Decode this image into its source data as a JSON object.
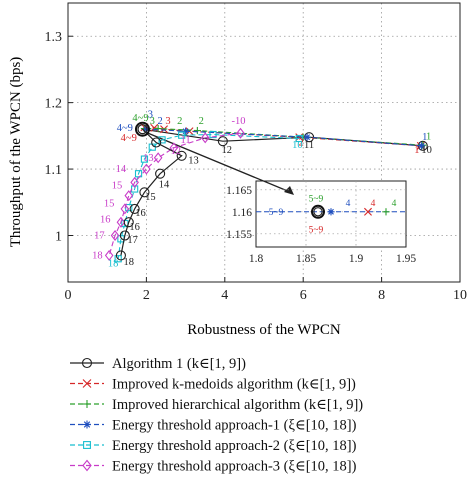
{
  "chart_data": {
    "type": "line",
    "xlabel": "Robustness of the WPCN",
    "ylabel": "Throughput of the WPCN (bps)",
    "xlim": [
      0,
      10
    ],
    "ylim": [
      0.93,
      1.35
    ],
    "xticks": [
      "0",
      "2",
      "4",
      "6",
      "8",
      "10"
    ],
    "yticks": [
      "1",
      "1.1",
      "1.2",
      "1.3"
    ],
    "grid": true,
    "legend_position": "below-plot",
    "series": [
      {
        "name": "Algorithm 1 (k∈[1, 9])",
        "color": "#222222",
        "marker": "circle",
        "dash": "solid",
        "points": [
          [
            9.05,
            1.135
          ],
          [
            6.15,
            1.148
          ],
          [
            3.95,
            1.142
          ],
          [
            1.9,
            1.16
          ]
        ],
        "labels": [
          {
            "text": "1",
            "color": "#1f4fbf",
            "x": 9.1,
            "y": 1.148
          },
          {
            "text": "1",
            "color": "#d62728",
            "x": 8.9,
            "y": 1.129
          },
          {
            "text": "10",
            "color": "#222222",
            "x": 9.15,
            "y": 1.129
          },
          {
            "text": "11",
            "color": "#222222",
            "x": 6.15,
            "y": 1.136
          },
          {
            "text": "12",
            "color": "#222222",
            "x": 4.05,
            "y": 1.129
          },
          {
            "text": "4~9",
            "color": "#1f4fbf",
            "x": 1.45,
            "y": 1.162
          },
          {
            "text": "4~9",
            "color": "#2ca02c",
            "x": 1.85,
            "y": 1.177
          },
          {
            "text": "4~9",
            "color": "#d62728",
            "x": 1.55,
            "y": 1.147
          }
        ]
      },
      {
        "name": "Improved k-medoids algorithm (k∈[1, 9])",
        "color": "#d62728",
        "marker": "x",
        "dash": "dashed",
        "points": [
          [
            9.0,
            1.135
          ],
          [
            5.9,
            1.148
          ],
          [
            3.1,
            1.157
          ],
          [
            2.45,
            1.16
          ],
          [
            2.2,
            1.162
          ],
          [
            1.95,
            1.163
          ]
        ],
        "labels": [
          {
            "text": "2",
            "color": "#d62728",
            "x": 5.95,
            "y": 1.14
          },
          {
            "text": "3",
            "color": "#d62728",
            "x": 2.55,
            "y": 1.172
          }
        ]
      },
      {
        "name": "Improved hierarchical algorithm (k∈[1, 9])",
        "color": "#2ca02c",
        "marker": "plus",
        "dash": "dashed",
        "points": [
          [
            9.05,
            1.136
          ],
          [
            6.0,
            1.148
          ],
          [
            3.3,
            1.158
          ],
          [
            2.3,
            1.161
          ],
          [
            1.95,
            1.161
          ]
        ],
        "labels": [
          {
            "text": "1",
            "color": "#2ca02c",
            "x": 9.2,
            "y": 1.149
          },
          {
            "text": "2",
            "color": "#2ca02c",
            "x": 3.4,
            "y": 1.172
          },
          {
            "text": "2",
            "color": "#2ca02c",
            "x": 2.85,
            "y": 1.172
          },
          {
            "text": "3",
            "color": "#2ca02c",
            "x": 2.15,
            "y": 1.172
          }
        ]
      },
      {
        "name": "Energy threshold approach-1 (ξ∈[10, 18])",
        "color": "#1f4fbf",
        "marker": "star",
        "dash": "dashed",
        "points": [
          [
            9.02,
            1.135
          ],
          [
            6.1,
            1.148
          ],
          [
            3.0,
            1.157
          ],
          [
            2.0,
            1.16
          ]
        ],
        "labels": [
          {
            "text": "2",
            "color": "#1f4fbf",
            "x": 2.35,
            "y": 1.172
          },
          {
            "text": "3",
            "color": "#1f4fbf",
            "x": 2.1,
            "y": 1.182
          }
        ]
      },
      {
        "name": "Energy threshold approach-2 (ξ∈[10, 18])",
        "color": "#17becf",
        "marker": "square",
        "dash": "dashed",
        "points": [
          [
            5.9,
            1.146
          ],
          [
            3.7,
            1.152
          ],
          [
            2.9,
            1.151
          ],
          [
            2.4,
            1.144
          ],
          [
            2.15,
            1.133
          ],
          [
            1.95,
            1.115
          ],
          [
            1.8,
            1.093
          ],
          [
            1.7,
            1.07
          ],
          [
            1.55,
            1.042
          ],
          [
            1.45,
            1.018
          ],
          [
            1.35,
            0.995
          ],
          [
            1.28,
            0.965
          ]
        ],
        "labels": [
          {
            "text": "10",
            "color": "#17becf",
            "x": 5.85,
            "y": 1.136
          },
          {
            "text": "18",
            "color": "#17becf",
            "x": 1.15,
            "y": 0.958
          }
        ]
      },
      {
        "name": "Energy threshold approach-3 (ξ∈[10, 18])",
        "color": "#c83cc8",
        "marker": "diamond",
        "dash": "dashed",
        "points": [
          [
            4.4,
            1.154
          ],
          [
            3.5,
            1.147
          ],
          [
            2.7,
            1.132
          ],
          [
            2.3,
            1.117
          ],
          [
            2.0,
            1.1
          ],
          [
            1.7,
            1.08
          ],
          [
            1.55,
            1.06
          ],
          [
            1.45,
            1.04
          ],
          [
            1.35,
            1.02
          ],
          [
            1.2,
            1.0
          ],
          [
            1.05,
            0.97
          ]
        ],
        "labels": [
          {
            "text": "-10",
            "color": "#c83cc8",
            "x": 4.35,
            "y": 1.172
          },
          {
            "text": "11",
            "color": "#c83cc8",
            "x": 3.0,
            "y": 1.144
          },
          {
            "text": "12",
            "color": "#c83cc8",
            "x": 2.75,
            "y": 1.127
          },
          {
            "text": "13",
            "color": "#c83cc8",
            "x": 2.05,
            "y": 1.117
          },
          {
            "text": "14",
            "color": "#c83cc8",
            "x": 1.35,
            "y": 1.1
          },
          {
            "text": "15",
            "color": "#c83cc8",
            "x": 1.25,
            "y": 1.075
          },
          {
            "text": "15",
            "color": "#c83cc8",
            "x": 1.05,
            "y": 1.048
          },
          {
            "text": "16",
            "color": "#c83cc8",
            "x": 0.95,
            "y": 1.024
          },
          {
            "text": "17",
            "color": "#c83cc8",
            "x": 0.8,
            "y": 1.0
          },
          {
            "text": "18",
            "color": "#c83cc8",
            "x": 0.75,
            "y": 0.97
          }
        ]
      },
      {
        "name": "",
        "color": "#222222",
        "marker": "circle",
        "dash": "solid",
        "points": [
          [
            1.9,
            1.16
          ],
          [
            2.25,
            1.14
          ],
          [
            2.9,
            1.12
          ],
          [
            2.35,
            1.093
          ],
          [
            1.95,
            1.065
          ],
          [
            1.7,
            1.04
          ],
          [
            1.55,
            1.02
          ],
          [
            1.45,
            1.0
          ],
          [
            1.35,
            0.97
          ]
        ],
        "labels": [
          {
            "text": "13",
            "color": "#222222",
            "x": 3.2,
            "y": 1.113
          },
          {
            "text": "14",
            "color": "#222222",
            "x": 2.45,
            "y": 1.077
          },
          {
            "text": "15",
            "color": "#222222",
            "x": 2.1,
            "y": 1.058
          },
          {
            "text": "16",
            "color": "#222222",
            "x": 1.85,
            "y": 1.034
          },
          {
            "text": "16",
            "color": "#222222",
            "x": 1.7,
            "y": 1.013
          },
          {
            "text": "17",
            "color": "#222222",
            "x": 1.65,
            "y": 0.993
          },
          {
            "text": "18",
            "color": "#222222",
            "x": 1.55,
            "y": 0.96
          }
        ]
      }
    ],
    "inset": {
      "xlim": [
        1.8,
        1.95
      ],
      "ylim": [
        1.152,
        1.167
      ],
      "xticks": [
        "1.8",
        "1.85",
        "1.9",
        "1.95"
      ],
      "yticks": [
        "1.155",
        "1.16",
        "1.165"
      ],
      "points": [
        {
          "series": 0,
          "x": 1.862,
          "y": 1.16
        },
        {
          "series": 3,
          "x": 1.875,
          "y": 1.16
        },
        {
          "series": 1,
          "x": 1.912,
          "y": 1.16
        },
        {
          "series": 2,
          "x": 1.93,
          "y": 1.16
        }
      ],
      "labels": [
        {
          "text": "5~9",
          "color": "#2ca02c",
          "x": 1.86,
          "y": 1.163
        },
        {
          "text": "5~9",
          "color": "#1f4fbf",
          "x": 1.82,
          "y": 1.16
        },
        {
          "text": "5~9",
          "color": "#d62728",
          "x": 1.86,
          "y": 1.156
        },
        {
          "text": "4",
          "color": "#1f4fbf",
          "x": 1.892,
          "y": 1.162
        },
        {
          "text": "4",
          "color": "#d62728",
          "x": 1.917,
          "y": 1.162
        },
        {
          "text": "4",
          "color": "#2ca02c",
          "x": 1.938,
          "y": 1.162
        }
      ]
    }
  }
}
